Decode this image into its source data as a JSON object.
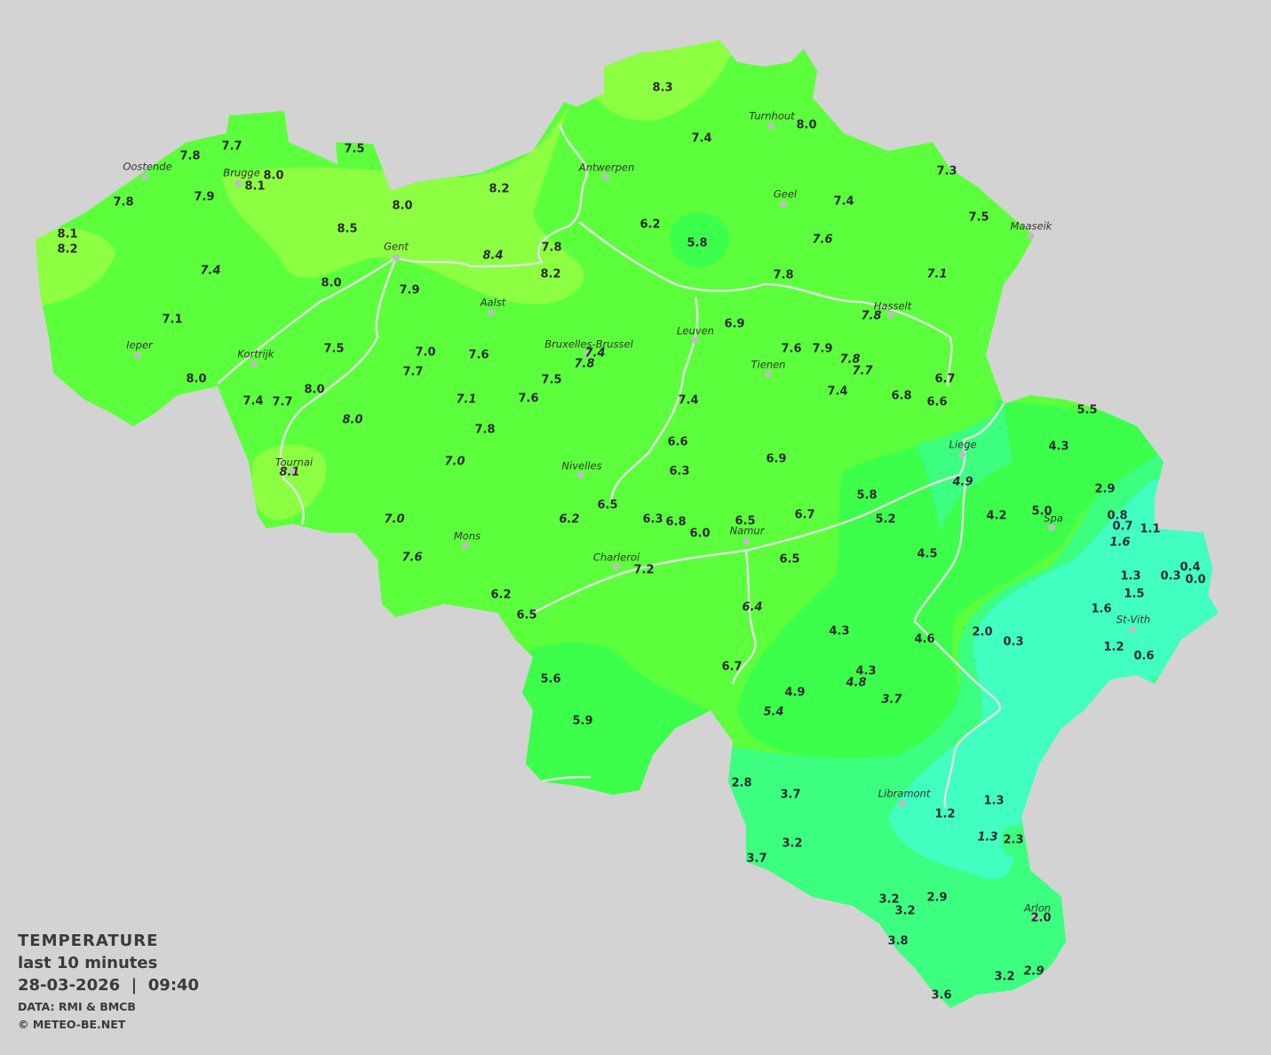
{
  "legend": {
    "title": "TEMPERATURE",
    "period": "last 10 minutes",
    "datetime": "28-03-2026  |  09:40",
    "source": "DATA: RMI & BMCB",
    "copyright": "© METEO-BE.NET"
  },
  "colors": {
    "background": "#d3d3d3",
    "band_8_plus": "#8cff42",
    "band_6_8": "#5cff3c",
    "band_4_6": "#3cff4c",
    "band_2_4": "#3cff80",
    "band_0_2": "#40ffc0",
    "rivers": "#e0e0e0"
  },
  "cities": [
    "Oostende",
    "Brugge",
    "Antwerpen",
    "Turnhout",
    "Geel",
    "Maaseik",
    "Gent",
    "Aalst",
    "Hasselt",
    "Leuven",
    "Bruxelles-Brussel",
    "Tienen",
    "Ieper",
    "Kortrijk",
    "Liege",
    "Tournai",
    "Nivelles",
    "Spa",
    "Mons",
    "Namur",
    "Charleroi",
    "St-Vith",
    "Libramont",
    "Arlon"
  ],
  "stations": [
    {
      "v": "8.3"
    },
    {
      "v": "7.4"
    },
    {
      "v": "8.0"
    },
    {
      "v": "7.3"
    },
    {
      "v": "7.4"
    },
    {
      "v": "7.5"
    },
    {
      "v": "7.6",
      "i": true
    },
    {
      "v": "7.1",
      "i": true
    },
    {
      "v": "6.2"
    },
    {
      "v": "5.8"
    },
    {
      "v": "7.8"
    },
    {
      "v": "8.2"
    },
    {
      "v": "7.7"
    },
    {
      "v": "7.8"
    },
    {
      "v": "7.5"
    },
    {
      "v": "8.0"
    },
    {
      "v": "8.1"
    },
    {
      "v": "7.9"
    },
    {
      "v": "7.8"
    },
    {
      "v": "8.0"
    },
    {
      "v": "8.5"
    },
    {
      "v": "8.1"
    },
    {
      "v": "8.2"
    },
    {
      "v": "7.4",
      "i": true
    },
    {
      "v": "8.4",
      "i": true
    },
    {
      "v": "7.8"
    },
    {
      "v": "8.2"
    },
    {
      "v": "8.0"
    },
    {
      "v": "7.9"
    },
    {
      "v": "7.1"
    },
    {
      "v": "6.9"
    },
    {
      "v": "7.8",
      "i": true
    },
    {
      "v": "7.5"
    },
    {
      "v": "7.0"
    },
    {
      "v": "7.6"
    },
    {
      "v": "7.4",
      "i": true
    },
    {
      "v": "7.8",
      "i": true
    },
    {
      "v": "7.6"
    },
    {
      "v": "7.9"
    },
    {
      "v": "7.8",
      "i": true
    },
    {
      "v": "7.7",
      "i": true
    },
    {
      "v": "7.7"
    },
    {
      "v": "7.5"
    },
    {
      "v": "8.0"
    },
    {
      "v": "8.0"
    },
    {
      "v": "7.4"
    },
    {
      "v": "7.7"
    },
    {
      "v": "7.1",
      "i": true
    },
    {
      "v": "7.6"
    },
    {
      "v": "7.4"
    },
    {
      "v": "7.4"
    },
    {
      "v": "6.8"
    },
    {
      "v": "6.7"
    },
    {
      "v": "6.6"
    },
    {
      "v": "8.0",
      "i": true
    },
    {
      "v": "7.8"
    },
    {
      "v": "6.6"
    },
    {
      "v": "7.0",
      "i": true
    },
    {
      "v": "6.3"
    },
    {
      "v": "6.9"
    },
    {
      "v": "8.1",
      "i": true
    },
    {
      "v": "6.5"
    },
    {
      "v": "5.8"
    },
    {
      "v": "5.2"
    },
    {
      "v": "7.0",
      "i": true
    },
    {
      "v": "6.2",
      "i": true
    },
    {
      "v": "6.3"
    },
    {
      "v": "6.8"
    },
    {
      "v": "6.0"
    },
    {
      "v": "6.5"
    },
    {
      "v": "6.7"
    },
    {
      "v": "7.6",
      "i": true
    },
    {
      "v": "7.2"
    },
    {
      "v": "6.5"
    },
    {
      "v": "4.5"
    },
    {
      "v": "6.2"
    },
    {
      "v": "6.5"
    },
    {
      "v": "6.4",
      "i": true
    },
    {
      "v": "4.3"
    },
    {
      "v": "4.6"
    },
    {
      "v": "2.0"
    },
    {
      "v": "0.3"
    },
    {
      "v": "5.6"
    },
    {
      "v": "6.7"
    },
    {
      "v": "4.3"
    },
    {
      "v": "4.8",
      "i": true
    },
    {
      "v": "4.9"
    },
    {
      "v": "3.7",
      "i": true
    },
    {
      "v": "5.4",
      "i": true
    },
    {
      "v": "5.9"
    },
    {
      "v": "5.5"
    },
    {
      "v": "4.3"
    },
    {
      "v": "2.9"
    },
    {
      "v": "4.9",
      "i": true
    },
    {
      "v": "4.2"
    },
    {
      "v": "5.0"
    },
    {
      "v": "0.8"
    },
    {
      "v": "0.7"
    },
    {
      "v": "1.1"
    },
    {
      "v": "1.6",
      "i": true
    },
    {
      "v": "1.3"
    },
    {
      "v": "0.3"
    },
    {
      "v": "0.4"
    },
    {
      "v": "0.0"
    },
    {
      "v": "1.5"
    },
    {
      "v": "1.6"
    },
    {
      "v": "1.2"
    },
    {
      "v": "0.6"
    },
    {
      "v": "2.8"
    },
    {
      "v": "3.7"
    },
    {
      "v": "3.2"
    },
    {
      "v": "3.7"
    },
    {
      "v": "1.2"
    },
    {
      "v": "1.3"
    },
    {
      "v": "1.3",
      "i": true
    },
    {
      "v": "2.3"
    },
    {
      "v": "3.2"
    },
    {
      "v": "3.2"
    },
    {
      "v": "2.9"
    },
    {
      "v": "2.0"
    },
    {
      "v": "3.8"
    },
    {
      "v": "3.2"
    },
    {
      "v": "2.9",
      "i": true
    },
    {
      "v": "3.6"
    }
  ]
}
